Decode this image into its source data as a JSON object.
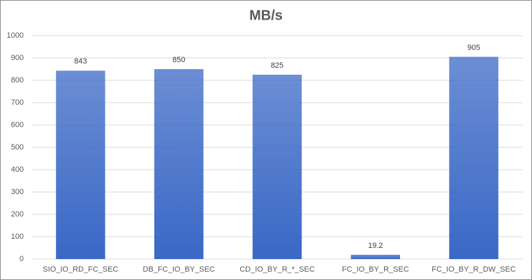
{
  "chart_data": {
    "type": "bar",
    "title": "MB/s",
    "categories": [
      "SIO_IO_RD_FC_SEC",
      "DB_FC_IO_BY_SEC",
      "CD_IO_BY_R_*_SEC",
      "FC_IO_BY_R_SEC",
      "FC_IO_BY_R_DW_SEC"
    ],
    "values": [
      843,
      850,
      825,
      19.2,
      905
    ],
    "color": "#3a68c6",
    "ylim": [
      0,
      1000
    ],
    "yticks": [
      0,
      100,
      200,
      300,
      400,
      500,
      600,
      700,
      800,
      900,
      1000
    ],
    "grid": true
  }
}
